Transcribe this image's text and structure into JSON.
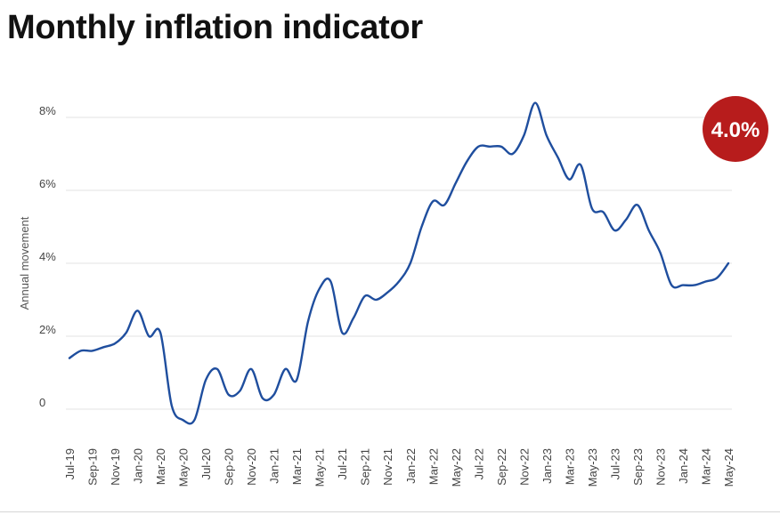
{
  "title": "Monthly inflation indicator",
  "badge": {
    "text": "4.0%",
    "color": "#b71c1c"
  },
  "colors": {
    "line": "#1f4e9e",
    "grid": "#e3e3e3"
  },
  "chart_data": {
    "type": "line",
    "title": "Monthly inflation indicator",
    "ylabel": "Annual movement",
    "xlabel": "",
    "ylim": [
      -0.5,
      9
    ],
    "y_ticks": [
      0,
      2,
      4,
      6,
      8
    ],
    "y_tick_labels": [
      "0",
      "2%",
      "4%",
      "6%",
      "8%"
    ],
    "grid": true,
    "x_tick_labels": [
      "Jul-19",
      "Sep-19",
      "Nov-19",
      "Jan-20",
      "Mar-20",
      "May-20",
      "Jul-20",
      "Sep-20",
      "Nov-20",
      "Jan-21",
      "Mar-21",
      "May-21",
      "Jul-21",
      "Sep-21",
      "Nov-21",
      "Jan-22",
      "Mar-22",
      "May-22",
      "Jul-22",
      "Sep-22",
      "Nov-22",
      "Jan-23",
      "Mar-23",
      "May-23",
      "Jul-23",
      "Sep-23",
      "Nov-23",
      "Jan-24",
      "Mar-24",
      "May-24"
    ],
    "x": [
      "Jul-19",
      "Aug-19",
      "Sep-19",
      "Oct-19",
      "Nov-19",
      "Dec-19",
      "Jan-20",
      "Feb-20",
      "Mar-20",
      "Apr-20",
      "May-20",
      "Jun-20",
      "Jul-20",
      "Aug-20",
      "Sep-20",
      "Oct-20",
      "Nov-20",
      "Dec-20",
      "Jan-21",
      "Feb-21",
      "Mar-21",
      "Apr-21",
      "May-21",
      "Jun-21",
      "Jul-21",
      "Aug-21",
      "Sep-21",
      "Oct-21",
      "Nov-21",
      "Dec-21",
      "Jan-22",
      "Feb-22",
      "Mar-22",
      "Apr-22",
      "May-22",
      "Jun-22",
      "Jul-22",
      "Aug-22",
      "Sep-22",
      "Oct-22",
      "Nov-22",
      "Dec-22",
      "Jan-23",
      "Feb-23",
      "Mar-23",
      "Apr-23",
      "May-23",
      "Jun-23",
      "Jul-23",
      "Aug-23",
      "Sep-23",
      "Oct-23",
      "Nov-23",
      "Dec-23",
      "Jan-24",
      "Feb-24",
      "Mar-24",
      "Apr-24",
      "May-24"
    ],
    "series": [
      {
        "values": [
          1.4,
          1.6,
          1.6,
          1.7,
          1.8,
          2.1,
          2.7,
          2.0,
          2.1,
          0.1,
          -0.3,
          -0.3,
          0.8,
          1.1,
          0.4,
          0.5,
          1.1,
          0.3,
          0.4,
          1.1,
          0.8,
          2.4,
          3.3,
          3.5,
          2.1,
          2.5,
          3.1,
          3.0,
          3.2,
          3.5,
          4.0,
          5.0,
          5.7,
          5.6,
          6.2,
          6.8,
          7.2,
          7.2,
          7.2,
          7.0,
          7.5,
          8.4,
          7.5,
          6.9,
          6.3,
          6.7,
          5.5,
          5.4,
          4.9,
          5.2,
          5.6,
          4.9,
          4.3,
          3.4,
          3.4,
          3.4,
          3.5,
          3.6,
          4.0
        ]
      }
    ]
  }
}
